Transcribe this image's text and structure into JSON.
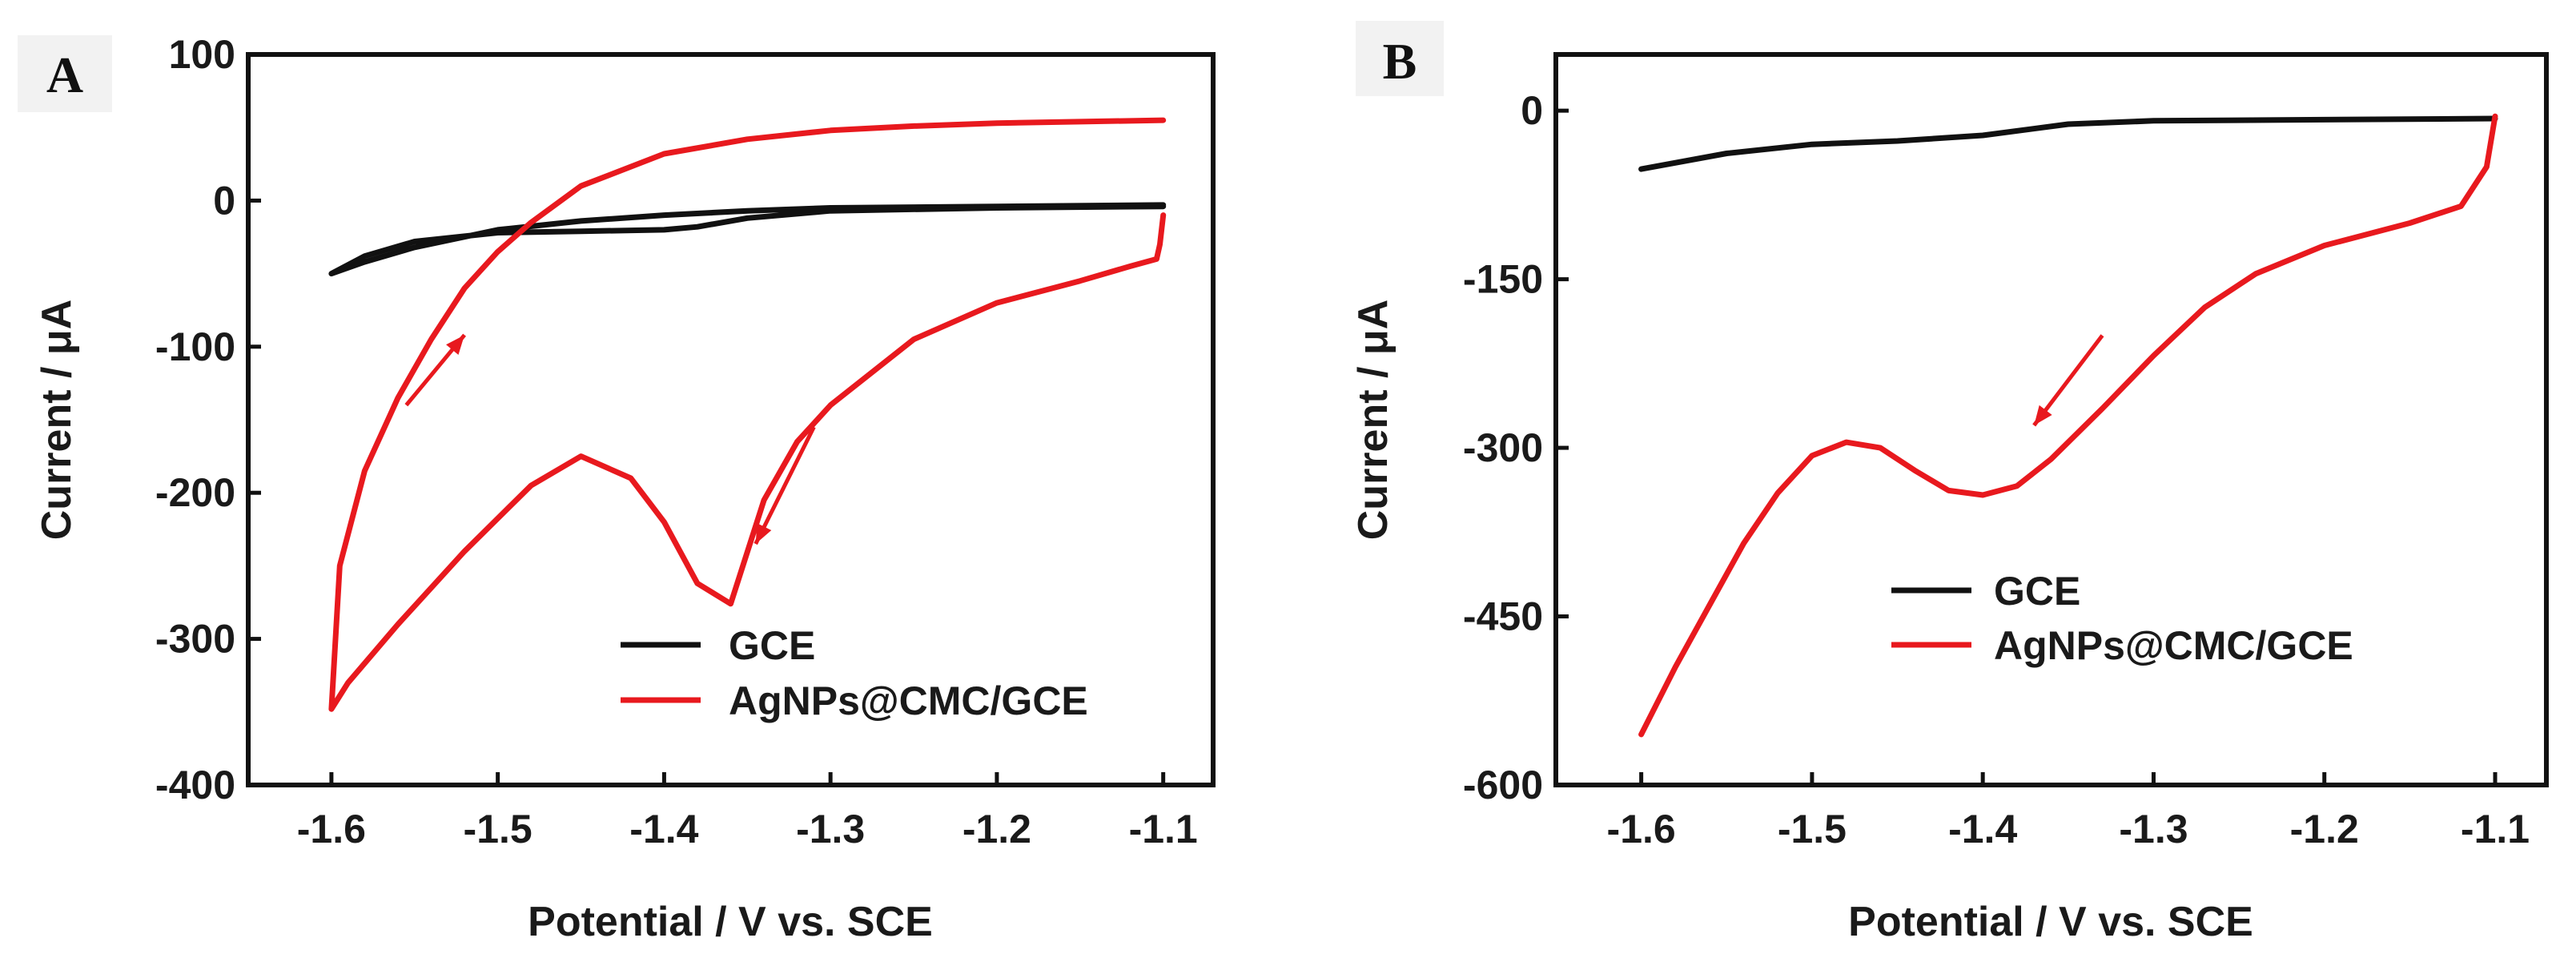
{
  "chart_data": [
    {
      "type": "line",
      "panel_label": "A",
      "xlabel": "Potential / V vs. SCE",
      "ylabel": "Current / μA",
      "xlim": [
        -1.65,
        -1.07
      ],
      "ylim": [
        -400,
        100
      ],
      "x_ticks": [
        -1.6,
        -1.5,
        -1.4,
        -1.3,
        -1.2,
        -1.1
      ],
      "x_tick_labels": [
        "-1.6",
        "-1.5",
        "-1.4",
        "-1.3",
        "-1.2",
        "-1.1"
      ],
      "y_ticks": [
        100,
        0,
        -100,
        -200,
        -300,
        -400
      ],
      "y_tick_labels": [
        "100",
        "0",
        "-100",
        "-200",
        "-300",
        "-400"
      ],
      "legend": {
        "position": "bottom-right",
        "entries": [
          "GCE",
          "AgNPs@CMC/GCE"
        ]
      },
      "series": [
        {
          "name": "GCE",
          "color": "#111111",
          "x": [
            -1.1,
            -1.2,
            -1.3,
            -1.35,
            -1.38,
            -1.4,
            -1.45,
            -1.5,
            -1.55,
            -1.58,
            -1.6,
            -1.58,
            -1.55,
            -1.5,
            -1.45,
            -1.4,
            -1.35,
            -1.3,
            -1.2,
            -1.1
          ],
          "y": [
            -4,
            -5,
            -7,
            -12,
            -18,
            -20,
            -21,
            -22,
            -28,
            -38,
            -50,
            -42,
            -32,
            -20,
            -14,
            -10,
            -7,
            -5,
            -4,
            -3
          ]
        },
        {
          "name": "AgNPs@CMC/GCE",
          "color": "#e8191e",
          "x": [
            -1.1,
            -1.102,
            -1.104,
            -1.12,
            -1.15,
            -1.2,
            -1.25,
            -1.3,
            -1.32,
            -1.34,
            -1.36,
            -1.38,
            -1.4,
            -1.42,
            -1.45,
            -1.48,
            -1.52,
            -1.56,
            -1.59,
            -1.6,
            -1.595,
            -1.58,
            -1.56,
            -1.54,
            -1.52,
            -1.5,
            -1.48,
            -1.45,
            -1.4,
            -1.35,
            -1.3,
            -1.25,
            -1.2,
            -1.15,
            -1.1
          ],
          "y": [
            -10,
            -30,
            -40,
            -45,
            -55,
            -70,
            -95,
            -140,
            -165,
            -205,
            -276,
            -262,
            -220,
            -190,
            -175,
            -195,
            -240,
            -290,
            -330,
            -348,
            -250,
            -185,
            -135,
            -95,
            -60,
            -35,
            -15,
            10,
            32,
            42,
            48,
            51,
            53,
            54,
            55
          ]
        }
      ],
      "arrows": [
        {
          "from": [
            -1.31,
            -155
          ],
          "to": [
            -1.345,
            -235
          ]
        },
        {
          "from": [
            -1.555,
            -140
          ],
          "to": [
            -1.52,
            -92
          ]
        }
      ]
    },
    {
      "type": "line",
      "panel_label": "B",
      "xlabel": "Potential / V vs. SCE",
      "ylabel": "Current / μA",
      "xlim": [
        -1.65,
        -1.07
      ],
      "ylim": [
        -600,
        50
      ],
      "x_ticks": [
        -1.6,
        -1.5,
        -1.4,
        -1.3,
        -1.2,
        -1.1
      ],
      "x_tick_labels": [
        "-1.6",
        "-1.5",
        "-1.4",
        "-1.3",
        "-1.2",
        "-1.1"
      ],
      "y_ticks": [
        0,
        -150,
        -300,
        -450,
        -600
      ],
      "y_tick_labels": [
        "0",
        "-150",
        "-300",
        "-450",
        "-600"
      ],
      "legend": {
        "position": "bottom-right",
        "entries": [
          "GCE",
          "AgNPs@CMC/GCE"
        ]
      },
      "series": [
        {
          "name": "GCE",
          "color": "#111111",
          "x": [
            -1.6,
            -1.55,
            -1.5,
            -1.45,
            -1.4,
            -1.35,
            -1.3,
            -1.2,
            -1.1
          ],
          "y": [
            -52,
            -38,
            -30,
            -27,
            -22,
            -12,
            -9,
            -8,
            -7
          ]
        },
        {
          "name": "AgNPs@CMC/GCE",
          "color": "#e8191e",
          "x": [
            -1.6,
            -1.58,
            -1.56,
            -1.54,
            -1.52,
            -1.5,
            -1.48,
            -1.46,
            -1.44,
            -1.42,
            -1.4,
            -1.38,
            -1.36,
            -1.33,
            -1.3,
            -1.27,
            -1.24,
            -1.2,
            -1.15,
            -1.12,
            -1.105,
            -1.1
          ],
          "y": [
            -555,
            -495,
            -440,
            -385,
            -340,
            -307,
            -295,
            -300,
            -320,
            -338,
            -342,
            -334,
            -310,
            -265,
            -218,
            -175,
            -145,
            -120,
            -100,
            -85,
            -50,
            -5
          ]
        }
      ],
      "arrows": [
        {
          "from": [
            -1.33,
            -200
          ],
          "to": [
            -1.37,
            -280
          ]
        }
      ]
    }
  ]
}
